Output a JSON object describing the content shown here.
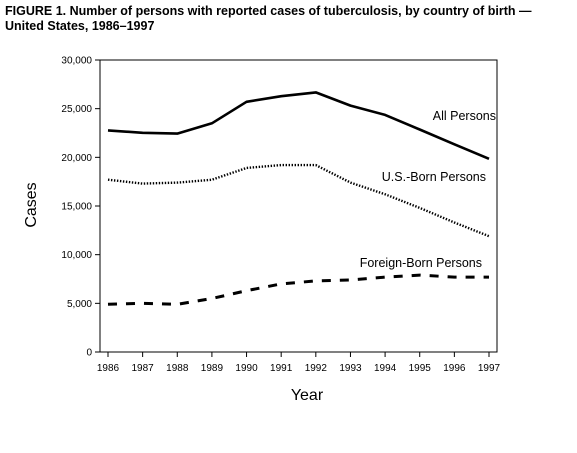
{
  "chart_data": {
    "type": "line",
    "title": "FIGURE 1. Number of persons with reported cases of tuberculosis, by country of birth — United States, 1986–1997",
    "xlabel": "Year",
    "ylabel": "Cases",
    "x": [
      1986,
      1987,
      1988,
      1989,
      1990,
      1991,
      1992,
      1993,
      1994,
      1995,
      1996,
      1997
    ],
    "ylim": [
      0,
      30000
    ],
    "yticks": [
      0,
      5000,
      10000,
      15000,
      20000,
      25000,
      30000
    ],
    "ytick_labels": [
      "0",
      "5,000",
      "10,000",
      "15,000",
      "20,000",
      "25,000",
      "30,000"
    ],
    "grid": false,
    "legend": "inline labels",
    "series": [
      {
        "name": "All Persons",
        "style": "solid",
        "values": [
          22768,
          22517,
          22436,
          23495,
          25701,
          26283,
          26673,
          25313,
          24361,
          22860,
          21337,
          19851
        ]
      },
      {
        "name": "U.S.-Born Persons",
        "style": "dotted",
        "values": [
          17700,
          17300,
          17400,
          17700,
          18900,
          19200,
          19200,
          17400,
          16200,
          14800,
          13300,
          11900
        ]
      },
      {
        "name": "Foreign-Born Persons",
        "style": "dashed",
        "values": [
          4900,
          5000,
          4900,
          5500,
          6300,
          7000,
          7300,
          7400,
          7700,
          7900,
          7700,
          7700
        ]
      }
    ]
  }
}
